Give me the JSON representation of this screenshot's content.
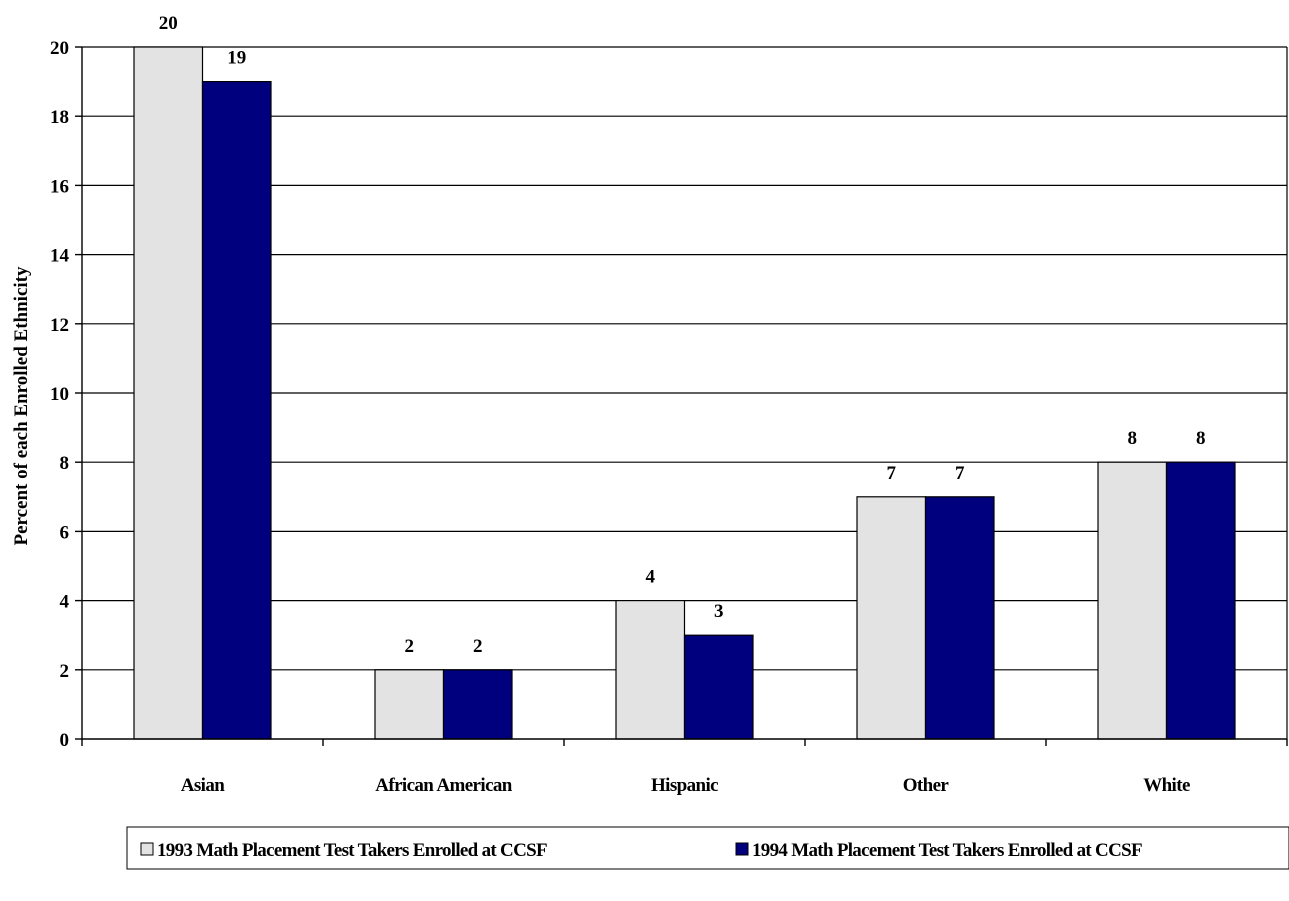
{
  "chart_data": {
    "type": "bar",
    "title": "",
    "xlabel": "",
    "ylabel": "Percent of each Enrolled Ethnicity",
    "categories": [
      "Asian",
      "African American",
      "Hispanic",
      "Other",
      "White"
    ],
    "series": [
      {
        "name": "1993 Math Placement Test Takers Enrolled at CCSF",
        "values": [
          20,
          2,
          4,
          7,
          8
        ],
        "color": "#e3e3e3"
      },
      {
        "name": "1994 Math Placement Test Takers Enrolled at CCSF",
        "values": [
          19,
          2,
          3,
          7,
          8
        ],
        "color": "#00007f"
      }
    ],
    "ylim": [
      0,
      20
    ],
    "yticks": [
      0,
      2,
      4,
      6,
      8,
      10,
      12,
      14,
      16,
      18,
      20
    ],
    "grid": true,
    "data_labels": true,
    "legend_position": "bottom"
  }
}
